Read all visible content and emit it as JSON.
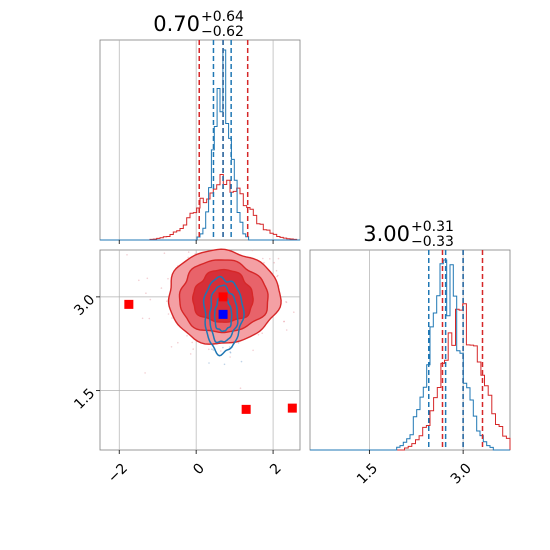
{
  "chart_data": {
    "type": "corner",
    "parameters": [
      "x",
      "y"
    ],
    "colors": {
      "red": "#d62728",
      "blue": "#1f77b4",
      "marker": "#ff0000",
      "blue_marker": "#0000ff",
      "grid": "#b0b0b0"
    },
    "titles": [
      {
        "value": "0.70",
        "plus": "+0.64",
        "minus": "−0.62"
      },
      {
        "value": "3.00",
        "plus": "+0.31",
        "minus": "−0.33"
      }
    ],
    "x_axis": {
      "xlim": [
        -2.5,
        2.7
      ],
      "ticks": [
        -2,
        0,
        2
      ],
      "tick_labels": [
        "−2",
        "0",
        "2"
      ]
    },
    "y_axis": {
      "ylim": [
        0.55,
        3.75
      ],
      "ticks": [
        1.5,
        3.0
      ],
      "tick_labels": [
        "1.5",
        "3.0"
      ]
    },
    "hist_top": {
      "red_quantiles": [
        0.08,
        0.7,
        1.34
      ],
      "blue_quantiles": [
        0.45,
        0.7,
        0.91
      ],
      "red_sigma": 0.62,
      "blue_sigma": 0.22,
      "blue_peak_ratio": 2.9
    },
    "hist_right": {
      "xlim": [
        0.55,
        3.75
      ],
      "ticks": [
        1.5,
        3.0
      ],
      "tick_labels": [
        "1.5",
        "3.0"
      ],
      "red_quantiles": [
        2.67,
        3.0,
        3.31
      ],
      "blue_quantiles": [
        2.45,
        2.72,
        3.0
      ],
      "red_sigma": 0.32,
      "blue_sigma": 0.26,
      "blue_peak_ratio": 1.3
    },
    "scatter_red_markers": [
      {
        "x": -1.75,
        "y": 2.88
      },
      {
        "x": 1.3,
        "y": 1.2
      },
      {
        "x": 2.5,
        "y": 1.22
      },
      {
        "x": 0.7,
        "y": 3.0
      }
    ],
    "scatter_blue_marker": {
      "x": 0.7,
      "y": 2.72
    },
    "contours_red": {
      "center": [
        0.7,
        3.0
      ],
      "rx": [
        1.45,
        1.15,
        0.78
      ],
      "ry": [
        0.75,
        0.58,
        0.42
      ]
    },
    "contours_blue": {
      "center": [
        0.7,
        2.72
      ],
      "rx": [
        0.5,
        0.36,
        0.22
      ],
      "ry": [
        0.6,
        0.45,
        0.28
      ]
    }
  }
}
